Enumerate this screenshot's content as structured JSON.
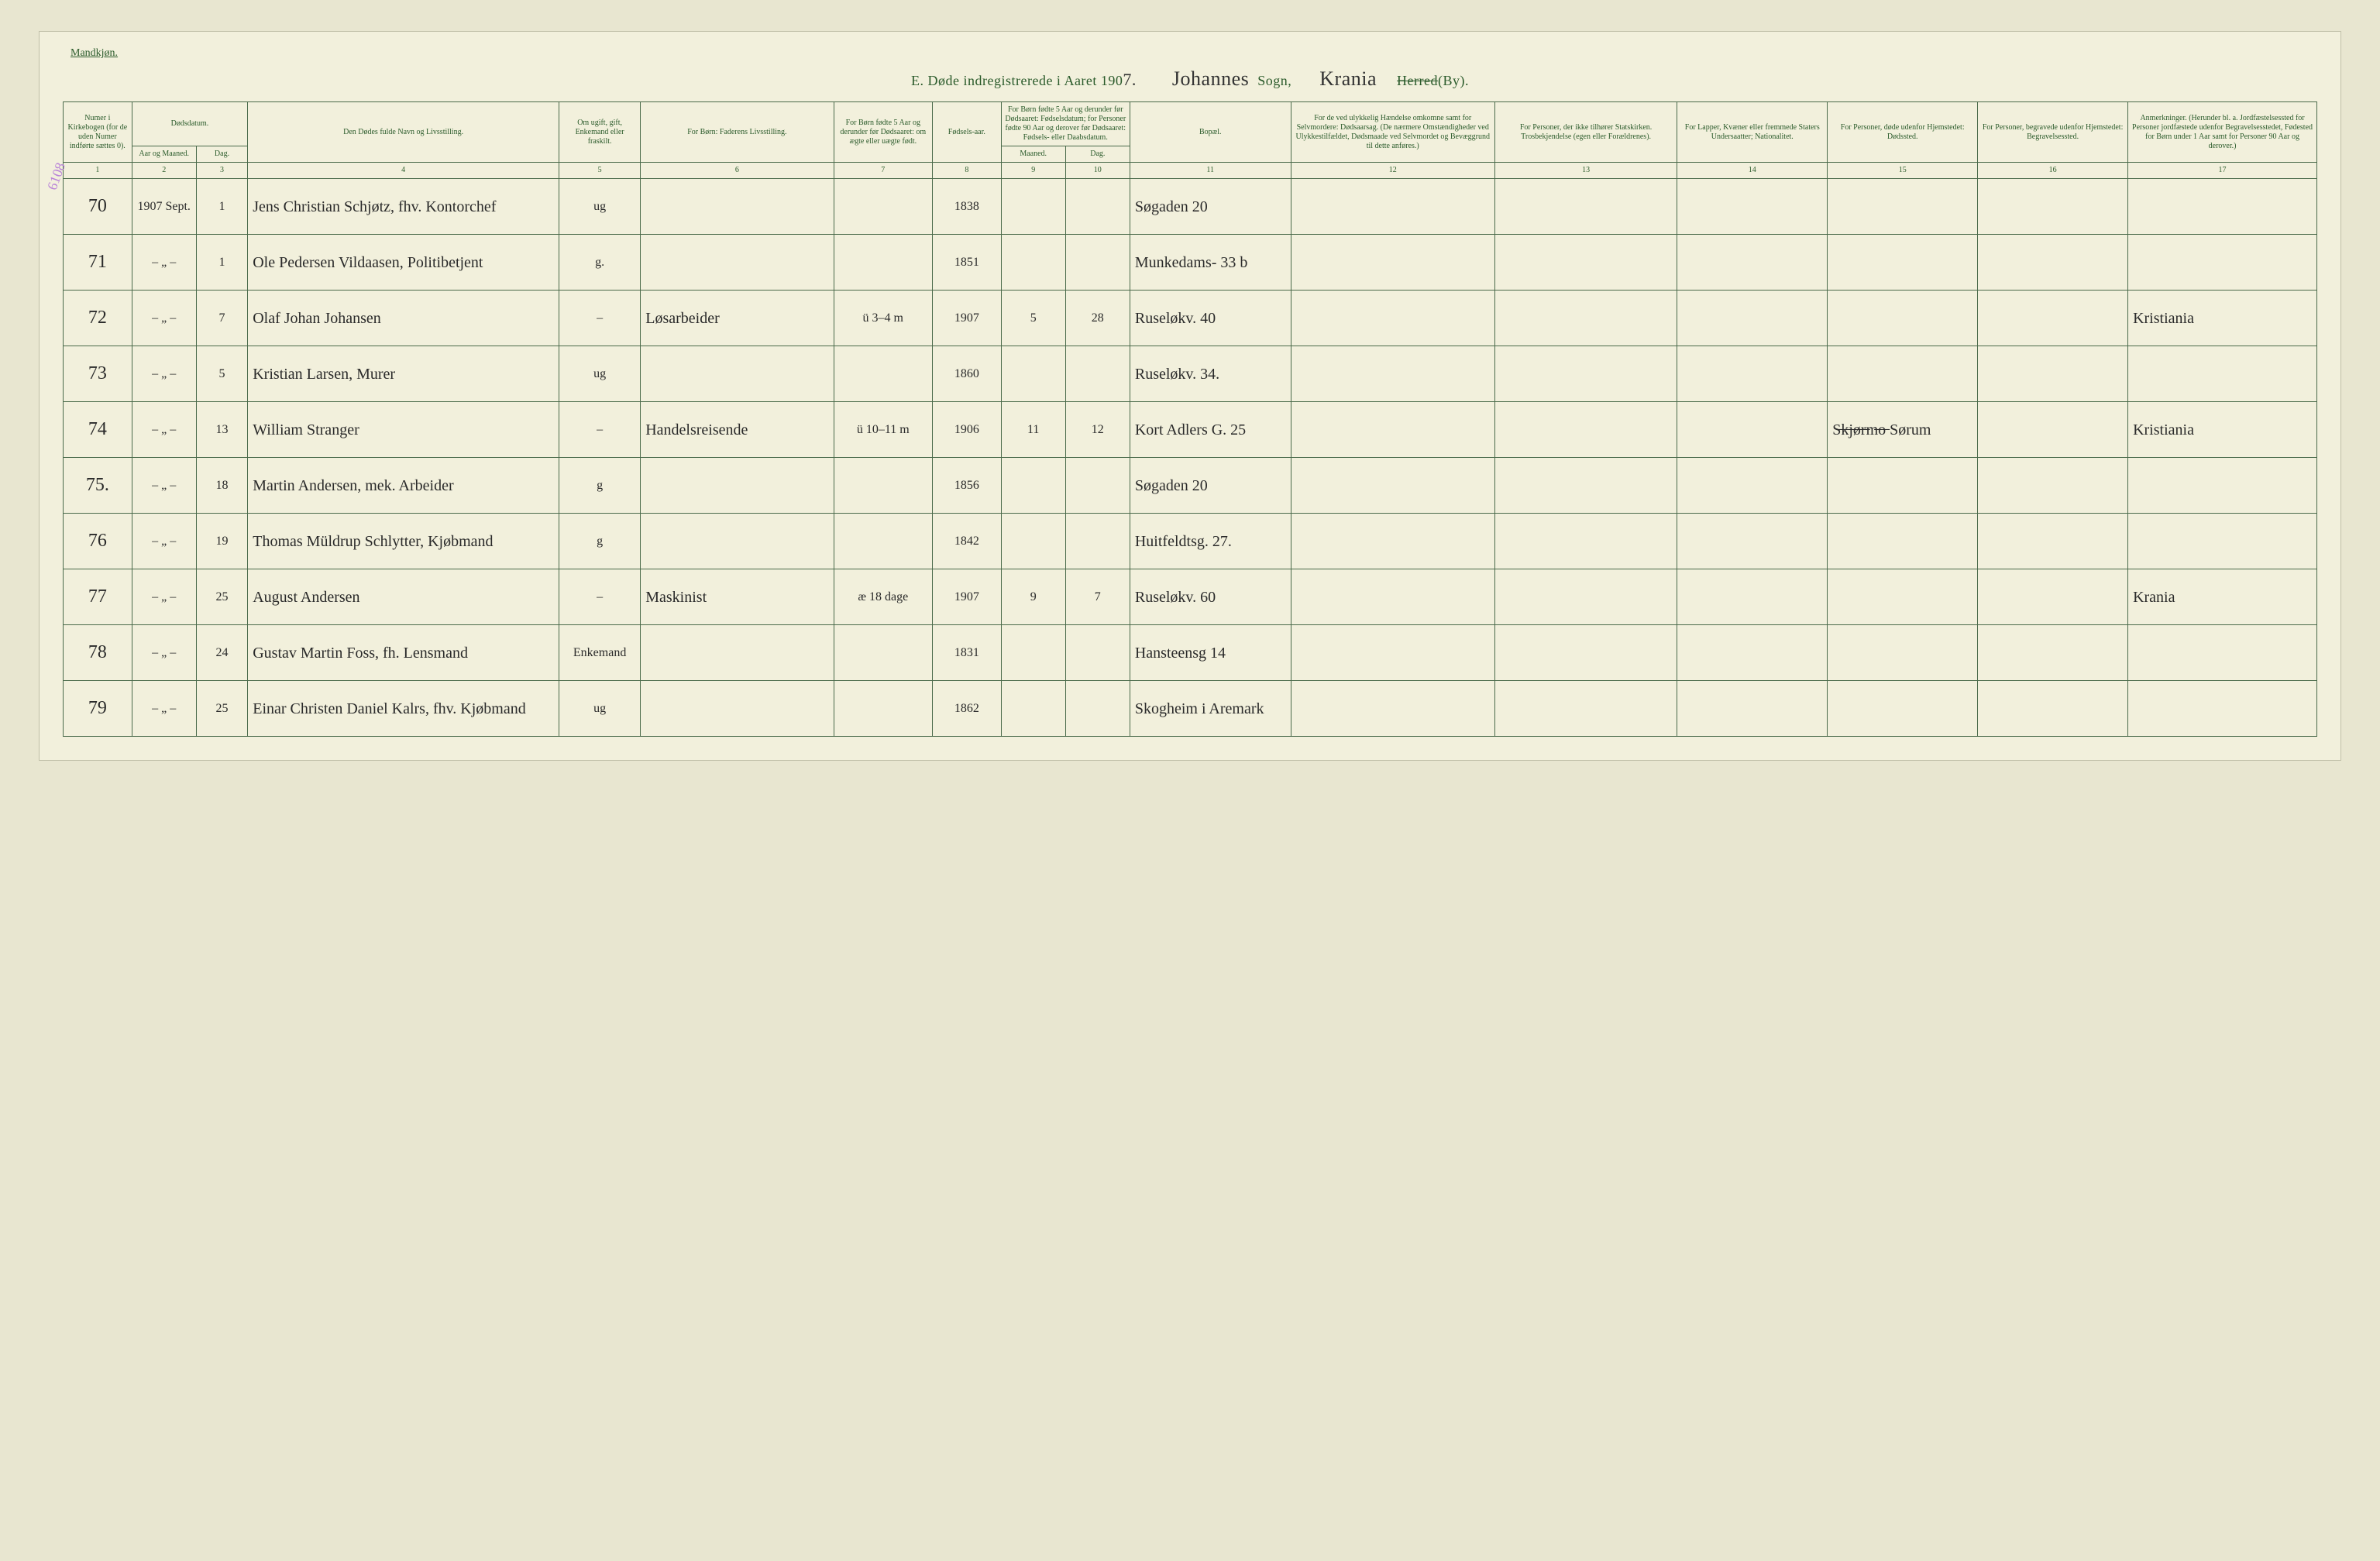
{
  "header": {
    "gender_label": "Mandkjøn.",
    "title_prefix": "E.   Døde indregistrerede i Aaret 190",
    "year_suffix": "7.",
    "sogn_script": "Johannes",
    "sogn_label": "Sogn,",
    "herred_script": "Krania",
    "herred_label_struck": "Herred",
    "herred_label_rest": "(By)."
  },
  "margin_note": "6108",
  "columns": {
    "c1": "Numer i Kirkebogen (for de uden Numer indførte sættes 0).",
    "c2a": "Dødsdatum.",
    "c2b": "Aar og Maaned.",
    "c3": "Dag.",
    "c4": "Den Dødes fulde Navn og Livsstilling.",
    "c5": "Om ugift, gift, Enkemand eller fraskilt.",
    "c6": "For Børn: Faderens Livsstilling.",
    "c7": "For Børn fødte 5 Aar og derunder før Dødsaaret: om ægte eller uægte født.",
    "c8": "Fødsels-aar.",
    "c9_top": "For Børn fødte 5 Aar og derunder før Dødsaaret: Fødselsdatum; for Personer fødte 90 Aar og derover før Dødsaaret: Fødsels- eller Daabsdatum.",
    "c9a": "Maaned.",
    "c9b": "Dag.",
    "c11": "Bopæl.",
    "c12": "For de ved ulykkelig Hændelse omkomne samt for Selvmordere: Dødsaarsag. (De nærmere Omstændigheder ved Ulykkestilfældet, Dødsmaade ved Selvmordet og Bevæggrund til dette anføres.)",
    "c13": "For Personer, der ikke tilhører Statskirken. Trosbekjendelse (egen eller Forældrenes).",
    "c14": "For Lapper, Kvæner eller fremmede Staters Undersaatter; Nationalitet.",
    "c15": "For Personer, døde udenfor Hjemstedet: Dødssted.",
    "c16": "For Personer, begravede udenfor Hjemstedet: Begravelsessted.",
    "c17": "Anmerkninger. (Herunder bl. a. Jordfæstelsessted for Personer jordfæstede udenfor Begravelsesstedet, Fødested for Børn under 1 Aar samt for Personer 90 Aar og derover.)"
  },
  "colnums": [
    "1",
    "2",
    "3",
    "4",
    "5",
    "6",
    "7",
    "8",
    "9",
    "10",
    "11",
    "12",
    "13",
    "14",
    "15",
    "16",
    "17"
  ],
  "rows": [
    {
      "no": "70",
      "ym": "1907 Sept.",
      "day": "1",
      "name": "Jens Christian Schjøtz, fhv. Kontorchef",
      "status": "ug",
      "father": "",
      "legit": "",
      "byear": "1838",
      "bm": "",
      "bd": "",
      "bopael": "Søgaden 20",
      "c12": "",
      "c13": "",
      "c14": "",
      "c15": "",
      "c16": "",
      "c17": ""
    },
    {
      "no": "71",
      "ym": "– „ –",
      "day": "1",
      "name": "Ole Pedersen Vildaasen, Politibetjent",
      "status": "g.",
      "father": "",
      "legit": "",
      "byear": "1851",
      "bm": "",
      "bd": "",
      "bopael": "Munkedams- 33 b",
      "c12": "",
      "c13": "",
      "c14": "",
      "c15": "",
      "c16": "",
      "c17": ""
    },
    {
      "no": "72",
      "ym": "– „ –",
      "day": "7",
      "name": "Olaf Johan Johansen",
      "status": "–",
      "father": "Løsarbeider",
      "legit": "ü   3–4 m",
      "byear": "1907",
      "bm": "5",
      "bd": "28",
      "bopael": "Ruseløkv. 40",
      "c12": "",
      "c13": "",
      "c14": "",
      "c15": "",
      "c16": "",
      "c17": "Kristiania"
    },
    {
      "no": "73",
      "ym": "– „ –",
      "day": "5",
      "name": "Kristian Larsen, Murer",
      "status": "ug",
      "father": "",
      "legit": "",
      "byear": "1860",
      "bm": "",
      "bd": "",
      "bopael": "Ruseløkv. 34.",
      "c12": "",
      "c13": "",
      "c14": "",
      "c15": "",
      "c16": "",
      "c17": ""
    },
    {
      "no": "74",
      "ym": "– „ –",
      "day": "13",
      "name": "William Stranger",
      "status": "–",
      "father": "Handelsreisende",
      "legit": "ü   10–11 m",
      "byear": "1906",
      "bm": "11",
      "bd": "12",
      "bopael": "Kort Adlers G. 25",
      "c12": "",
      "c13": "",
      "c14": "",
      "c15": "S̶k̶j̶ø̶r̶m̶o̶  Sørum",
      "c16": "",
      "c17": "Kristiania"
    },
    {
      "no": "75.",
      "ym": "– „ –",
      "day": "18",
      "name": "Martin Andersen, mek. Arbeider",
      "status": "g",
      "father": "",
      "legit": "",
      "byear": "1856",
      "bm": "",
      "bd": "",
      "bopael": "Søgaden 20",
      "c12": "",
      "c13": "",
      "c14": "",
      "c15": "",
      "c16": "",
      "c17": ""
    },
    {
      "no": "76",
      "ym": "– „ –",
      "day": "19",
      "name": "Thomas Müldrup Schlytter, Kjøbmand",
      "status": "g",
      "father": "",
      "legit": "",
      "byear": "1842",
      "bm": "",
      "bd": "",
      "bopael": "Huitfeldtsg. 27.",
      "c12": "",
      "c13": "",
      "c14": "",
      "c15": "",
      "c16": "",
      "c17": ""
    },
    {
      "no": "77",
      "ym": "– „ –",
      "day": "25",
      "name": "August Andersen",
      "status": "–",
      "father": "Maskinist",
      "legit": "æ   18 dage",
      "byear": "1907",
      "bm": "9",
      "bd": "7",
      "bopael": "Ruseløkv. 60",
      "c12": "",
      "c13": "",
      "c14": "",
      "c15": "",
      "c16": "",
      "c17": "Krania"
    },
    {
      "no": "78",
      "ym": "– „ –",
      "day": "24",
      "name": "Gustav Martin Foss, fh. Lensmand",
      "status": "Enkemand",
      "father": "",
      "legit": "",
      "byear": "1831",
      "bm": "",
      "bd": "",
      "bopael": "Hansteensg 14",
      "c12": "",
      "c13": "",
      "c14": "",
      "c15": "",
      "c16": "",
      "c17": ""
    },
    {
      "no": "79",
      "ym": "– „ –",
      "day": "25",
      "name": "Einar Christen Daniel Kalrs, fhv. Kjøbmand",
      "status": "ug",
      "father": "",
      "legit": "",
      "byear": "1862",
      "bm": "",
      "bd": "",
      "bopael": "Skogheim i Aremark",
      "c12": "",
      "c13": "",
      "c14": "",
      "c15": "",
      "c16": "",
      "c17": ""
    }
  ]
}
